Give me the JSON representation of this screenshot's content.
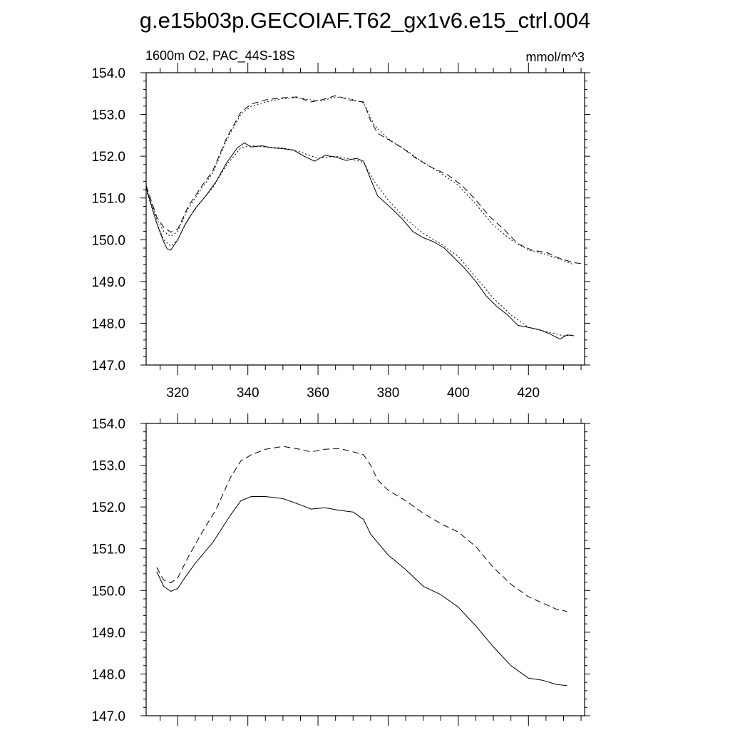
{
  "title": "g.e15b03p.GECOIAF.T62_gx1v6.e15_ctrl.004",
  "subtitle_left": "1600m O2, PAC_44S-18S",
  "subtitle_right": "mmol/m^3",
  "chart_data": [
    {
      "type": "line",
      "name": "top-panel",
      "xlim": [
        311,
        436
      ],
      "ylim": [
        147.0,
        154.0
      ],
      "xticks": [
        320,
        340,
        360,
        380,
        400,
        420
      ],
      "xtick_labels": [
        "320",
        "340",
        "360",
        "380",
        "400",
        "420"
      ],
      "yticks": [
        147,
        148,
        149,
        150,
        151,
        152,
        153,
        154
      ],
      "ytick_labels": [
        "147.0",
        "148.0",
        "149.0",
        "150.0",
        "151.0",
        "152.0",
        "153.0",
        "154.0"
      ],
      "series": [
        {
          "name": "lower-solid",
          "style": "solid",
          "x": [
            311,
            314,
            316,
            317,
            318,
            320,
            322,
            325,
            328,
            331,
            334,
            337,
            339,
            341,
            344,
            347,
            350,
            353,
            356,
            359,
            362,
            365,
            368,
            371,
            373,
            375,
            377,
            379,
            381,
            384,
            387,
            390,
            393,
            396,
            399,
            402,
            405,
            408,
            411,
            414,
            417,
            420,
            423,
            426,
            429,
            431,
            433
          ],
          "y": [
            151.25,
            150.4,
            149.95,
            149.78,
            149.75,
            150.0,
            150.35,
            150.75,
            151.05,
            151.4,
            151.85,
            152.2,
            152.32,
            152.22,
            152.25,
            152.2,
            152.18,
            152.15,
            152.0,
            151.88,
            152.02,
            151.98,
            151.9,
            151.95,
            151.88,
            151.45,
            151.05,
            150.9,
            150.75,
            150.5,
            150.2,
            150.05,
            149.95,
            149.8,
            149.55,
            149.3,
            149.0,
            148.65,
            148.4,
            148.2,
            147.95,
            147.9,
            147.85,
            147.75,
            147.62,
            147.72,
            147.7
          ]
        },
        {
          "name": "lower-dotted",
          "style": "dotted",
          "x": [
            311,
            314,
            316,
            318,
            320,
            323,
            326,
            330,
            334,
            338,
            341,
            345,
            350,
            355,
            360,
            365,
            370,
            373,
            376,
            380,
            385,
            390,
            395,
            400,
            405,
            410,
            415,
            420,
            425,
            430,
            433
          ],
          "y": [
            151.2,
            150.4,
            150.0,
            149.85,
            150.0,
            150.5,
            150.85,
            151.25,
            151.8,
            152.2,
            152.25,
            152.22,
            152.2,
            152.1,
            151.95,
            152.0,
            151.92,
            151.85,
            151.4,
            150.95,
            150.5,
            150.15,
            149.9,
            149.6,
            149.1,
            148.6,
            148.2,
            147.9,
            147.8,
            147.7,
            147.72
          ]
        },
        {
          "name": "upper-dashed",
          "style": "dashed",
          "x": [
            311,
            314,
            316,
            318,
            320,
            323,
            327,
            330,
            334,
            338,
            341,
            345,
            350,
            354,
            358,
            361,
            365,
            369,
            373,
            375,
            377,
            380,
            384,
            388,
            392,
            397,
            401,
            405,
            409,
            413,
            417,
            421,
            425,
            429,
            433,
            436
          ],
          "y": [
            151.3,
            150.55,
            150.3,
            150.18,
            150.25,
            150.8,
            151.3,
            151.65,
            152.45,
            153.05,
            153.25,
            153.35,
            153.4,
            153.42,
            153.3,
            153.35,
            153.45,
            153.35,
            153.3,
            152.85,
            152.55,
            152.4,
            152.2,
            151.95,
            151.75,
            151.55,
            151.3,
            150.95,
            150.55,
            150.25,
            149.9,
            149.75,
            149.7,
            149.55,
            149.45,
            149.42
          ]
        },
        {
          "name": "upper-dotted",
          "style": "dotted",
          "x": [
            311,
            314,
            316,
            318,
            320,
            323,
            327,
            330,
            334,
            338,
            341,
            345,
            350,
            354,
            358,
            361,
            365,
            369,
            373,
            376,
            380,
            385,
            390,
            395,
            400,
            405,
            410,
            415,
            420,
            425,
            430,
            433
          ],
          "y": [
            151.25,
            150.5,
            150.2,
            150.08,
            150.2,
            150.75,
            151.25,
            151.6,
            152.4,
            153.0,
            153.2,
            153.3,
            153.38,
            153.4,
            153.35,
            153.32,
            153.42,
            153.38,
            153.28,
            152.75,
            152.42,
            152.15,
            151.85,
            151.6,
            151.3,
            150.85,
            150.35,
            150.0,
            149.75,
            149.65,
            149.5,
            149.4
          ]
        }
      ]
    },
    {
      "type": "line",
      "name": "bottom-panel",
      "xlim": [
        311,
        436
      ],
      "ylim": [
        147.0,
        154.0
      ],
      "xticks": [
        320,
        340,
        360,
        380,
        400,
        420
      ],
      "yticks": [
        147,
        148,
        149,
        150,
        151,
        152,
        153,
        154
      ],
      "ytick_labels": [
        "147.0",
        "148.0",
        "149.0",
        "150.0",
        "151.0",
        "152.0",
        "153.0",
        "154.0"
      ],
      "series": [
        {
          "name": "lower-solid-smooth",
          "style": "solid",
          "x": [
            314,
            316,
            318,
            320,
            322,
            325,
            330,
            335,
            338,
            341,
            345,
            350,
            355,
            358,
            362,
            366,
            370,
            373,
            375,
            377,
            380,
            385,
            390,
            395,
            400,
            405,
            410,
            415,
            420,
            424,
            428,
            431
          ],
          "y": [
            150.45,
            150.1,
            149.98,
            150.05,
            150.3,
            150.65,
            151.15,
            151.8,
            152.15,
            152.25,
            152.25,
            152.2,
            152.05,
            151.95,
            151.98,
            151.92,
            151.88,
            151.7,
            151.35,
            151.15,
            150.85,
            150.5,
            150.1,
            149.9,
            149.6,
            149.15,
            148.65,
            148.2,
            147.9,
            147.85,
            147.75,
            147.72
          ]
        },
        {
          "name": "upper-dashed-smooth",
          "style": "dashed",
          "x": [
            314,
            316,
            318,
            320,
            323,
            327,
            331,
            335,
            338,
            341,
            345,
            350,
            355,
            358,
            362,
            366,
            370,
            373,
            375,
            377,
            380,
            385,
            390,
            395,
            400,
            405,
            410,
            415,
            420,
            424,
            428,
            431
          ],
          "y": [
            150.55,
            150.25,
            150.18,
            150.3,
            150.8,
            151.4,
            151.95,
            152.7,
            153.1,
            153.25,
            153.38,
            153.45,
            153.38,
            153.32,
            153.38,
            153.4,
            153.32,
            153.25,
            153.0,
            152.65,
            152.4,
            152.15,
            151.85,
            151.6,
            151.4,
            151.05,
            150.55,
            150.15,
            149.85,
            149.7,
            149.55,
            149.5
          ]
        }
      ]
    }
  ]
}
